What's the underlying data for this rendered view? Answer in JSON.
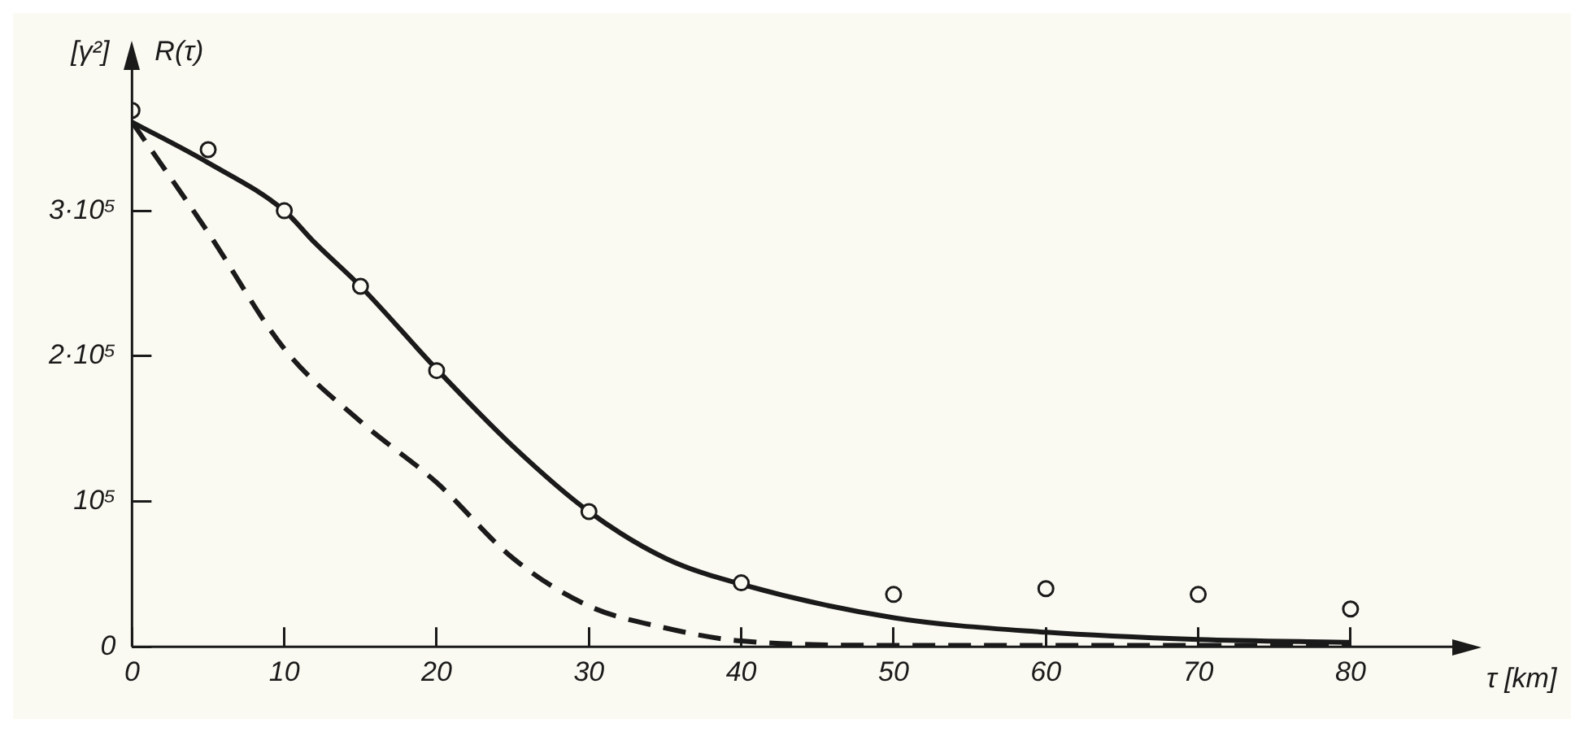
{
  "chart_data": {
    "type": "line",
    "title": "R(τ)",
    "ylabel": "[γ²]",
    "xlabel": "τ [km]",
    "xlim": [
      0,
      87
    ],
    "xticks": [
      0,
      10,
      20,
      30,
      40,
      50,
      60,
      70,
      80
    ],
    "ylim": [
      0,
      400000
    ],
    "yticks": [
      {
        "value": 0,
        "label": "0"
      },
      {
        "value": 100000,
        "label": "10⁵"
      },
      {
        "value": 200000,
        "label": "2·10⁵"
      },
      {
        "value": 300000,
        "label": "3·10⁵"
      }
    ],
    "grid": false,
    "legend": false,
    "series": [
      {
        "type": "scatter",
        "marker": "circle",
        "color": "#1a1a1a",
        "x": [
          0,
          5,
          10,
          15,
          20,
          30,
          40,
          50,
          60,
          70,
          80
        ],
        "values": [
          369000,
          342000,
          300000,
          248000,
          190000,
          93000,
          44000,
          36000,
          40000,
          36000,
          26000
        ]
      },
      {
        "type": "line",
        "marker": "none",
        "line_style": "solid",
        "color": "#1a1a1a",
        "x": [
          0,
          5,
          10,
          12,
          15,
          20,
          25,
          30,
          35,
          40,
          50,
          60,
          70,
          80
        ],
        "values": [
          361000,
          333000,
          300000,
          278000,
          248000,
          191000,
          138000,
          93000,
          61000,
          43000,
          20000,
          10000,
          5000,
          3000
        ]
      },
      {
        "type": "line",
        "marker": "none",
        "line_style": "dashed",
        "color": "#1a1a1a",
        "x": [
          0,
          5,
          10,
          15,
          20,
          25,
          30,
          35,
          40,
          50,
          60,
          70,
          80
        ],
        "values": [
          361000,
          285000,
          205000,
          155000,
          113000,
          61000,
          28000,
          13000,
          4000,
          1000,
          1000,
          1000,
          1000
        ]
      }
    ]
  }
}
